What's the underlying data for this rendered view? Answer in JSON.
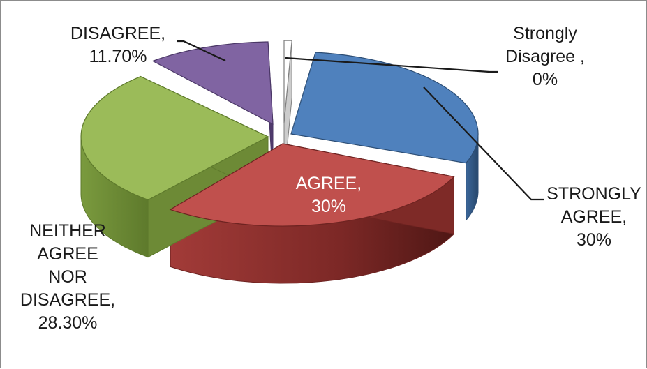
{
  "chart_data": {
    "type": "pie",
    "style": "3d-exploded",
    "legend": "none",
    "slices": [
      {
        "name": "Strongly Disagree",
        "category_label": [
          "Strongly",
          "Disagree ,"
        ],
        "value": 0,
        "value_label": "0%",
        "color": "#ffffff"
      },
      {
        "name": "STRONGLY AGREE",
        "category_label": [
          "STRONGLY",
          "AGREE,"
        ],
        "value": 30,
        "value_label": "30%",
        "color": "#4f81bd"
      },
      {
        "name": "AGREE",
        "category_label": [
          "AGREE,"
        ],
        "value": 30,
        "value_label": "30%",
        "color": "#c0504d"
      },
      {
        "name": "NEITHER AGREE NOR DISAGREE",
        "category_label": [
          "NEITHER",
          "AGREE",
          "NOR",
          "DISAGREE,"
        ],
        "value": 28.3,
        "value_label": "28.30%",
        "color": "#9bbb59"
      },
      {
        "name": "DISAGREE",
        "category_label": [
          "DISAGREE,"
        ],
        "value": 11.7,
        "value_label": "11.70%",
        "color": "#8064a2"
      }
    ]
  }
}
